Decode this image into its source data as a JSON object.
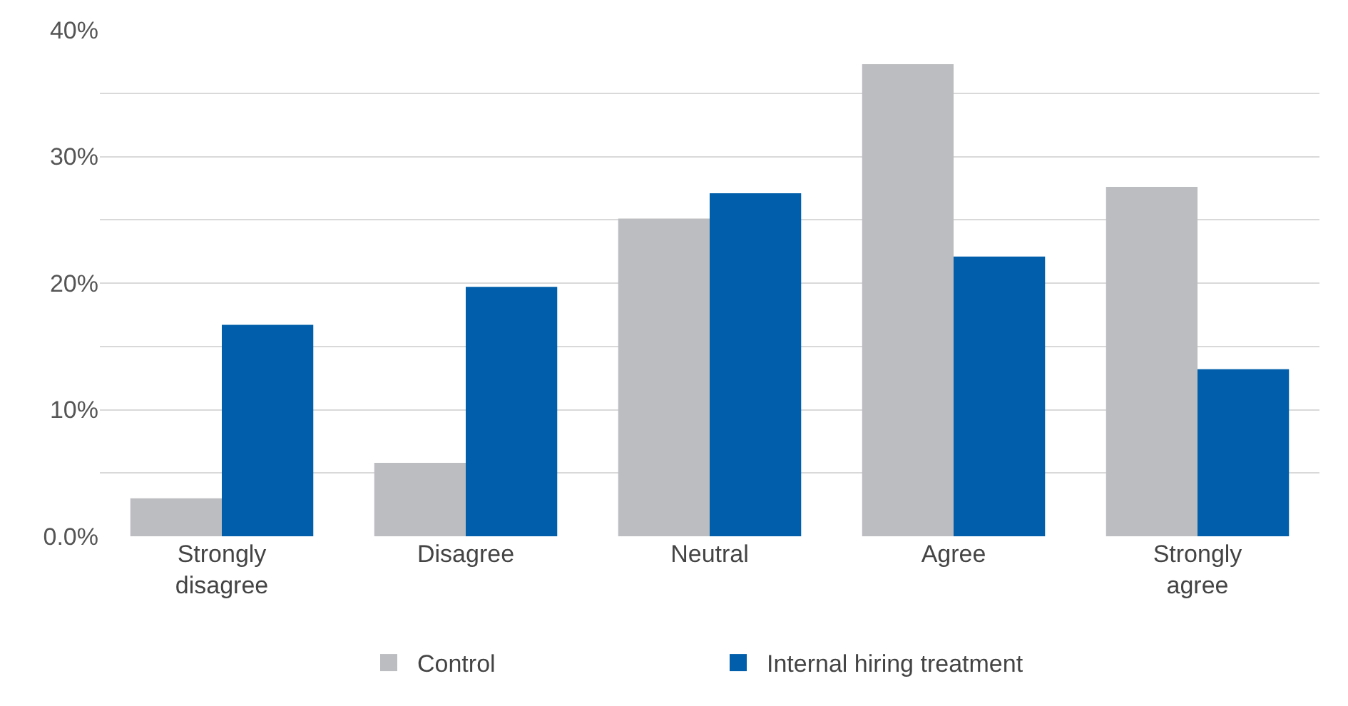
{
  "chart_data": {
    "type": "bar",
    "categories": [
      "Strongly\ndisagree",
      "Disagree",
      "Neutral",
      "Agree",
      "Strongly\nagree"
    ],
    "series": [
      {
        "name": "Control",
        "color": "#bcbdc0",
        "values": [
          3.0,
          5.8,
          25.1,
          37.3,
          27.6
        ]
      },
      {
        "name": "Internal hiring treatment",
        "color": "#005eaa",
        "values": [
          16.7,
          19.7,
          27.1,
          22.1,
          13.2
        ]
      }
    ],
    "ylim": [
      0,
      40
    ],
    "yticks": [
      {
        "value": 0,
        "label": "0.0%"
      },
      {
        "value": 5,
        "label": null
      },
      {
        "value": 10,
        "label": "10%"
      },
      {
        "value": 15,
        "label": null
      },
      {
        "value": 20,
        "label": "20%"
      },
      {
        "value": 25,
        "label": null
      },
      {
        "value": 30,
        "label": "30%"
      },
      {
        "value": 35,
        "label": null
      },
      {
        "value": 40,
        "label": "40%"
      }
    ],
    "grid": "y",
    "legend": "bottom"
  }
}
